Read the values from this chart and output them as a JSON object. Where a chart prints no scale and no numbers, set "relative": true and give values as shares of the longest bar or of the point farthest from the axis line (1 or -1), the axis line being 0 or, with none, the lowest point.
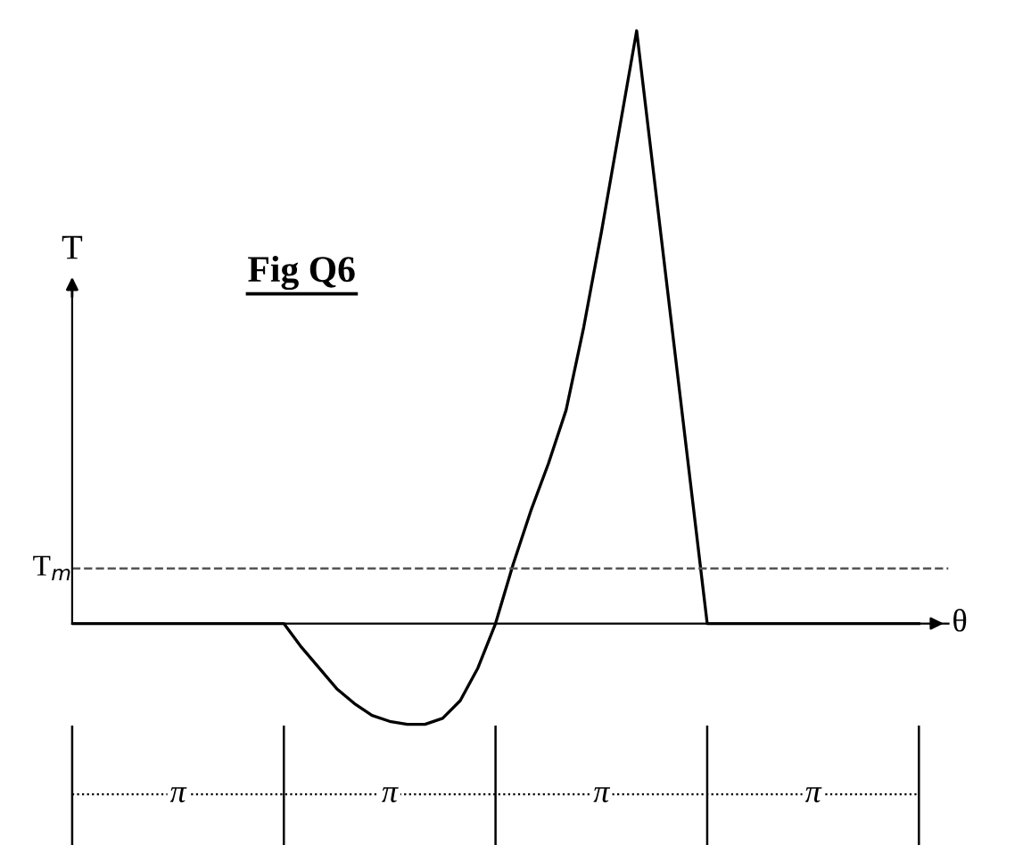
{
  "chart_data": {
    "type": "line",
    "relative": true,
    "title": "Fig Q6",
    "xlabel": "θ",
    "ylabel": "T",
    "categories": [
      null,
      null,
      null,
      null,
      null,
      null,
      null,
      null,
      null,
      null,
      null,
      null,
      null,
      null,
      null,
      null,
      null,
      null,
      null,
      null,
      null,
      null,
      null,
      null,
      null,
      null,
      null,
      null,
      null,
      null,
      null,
      null,
      null,
      null,
      null,
      null,
      null,
      null,
      null,
      null,
      null,
      null,
      null,
      null,
      null,
      null,
      null,
      null,
      null
    ],
    "series": [
      {
        "color": "#000000",
        "values": [
          0,
          0,
          0,
          0,
          0,
          0,
          0,
          0,
          0,
          0,
          0,
          0,
          0,
          -0.04,
          -0.075,
          -0.11,
          -0.135,
          -0.155,
          -0.165,
          -0.17,
          -0.17,
          -0.16,
          -0.13,
          -0.075,
          0,
          0.1,
          0.19,
          0.27,
          0.36,
          0.5,
          0.66,
          0.83,
          1,
          0.75,
          0.5,
          0.25,
          0,
          0,
          0,
          0,
          0,
          0,
          0,
          0,
          0,
          0,
          0,
          0,
          0
        ]
      }
    ],
    "ref_lines": [
      {
        "axis": "y",
        "value": 0.093,
        "label": "T$_{m}$",
        "line_style": "dashed",
        "color": "#555555"
      }
    ],
    "annotations": [
      "π",
      "π",
      "π",
      "π"
    ],
    "line_style": "solid",
    "grid": false
  }
}
